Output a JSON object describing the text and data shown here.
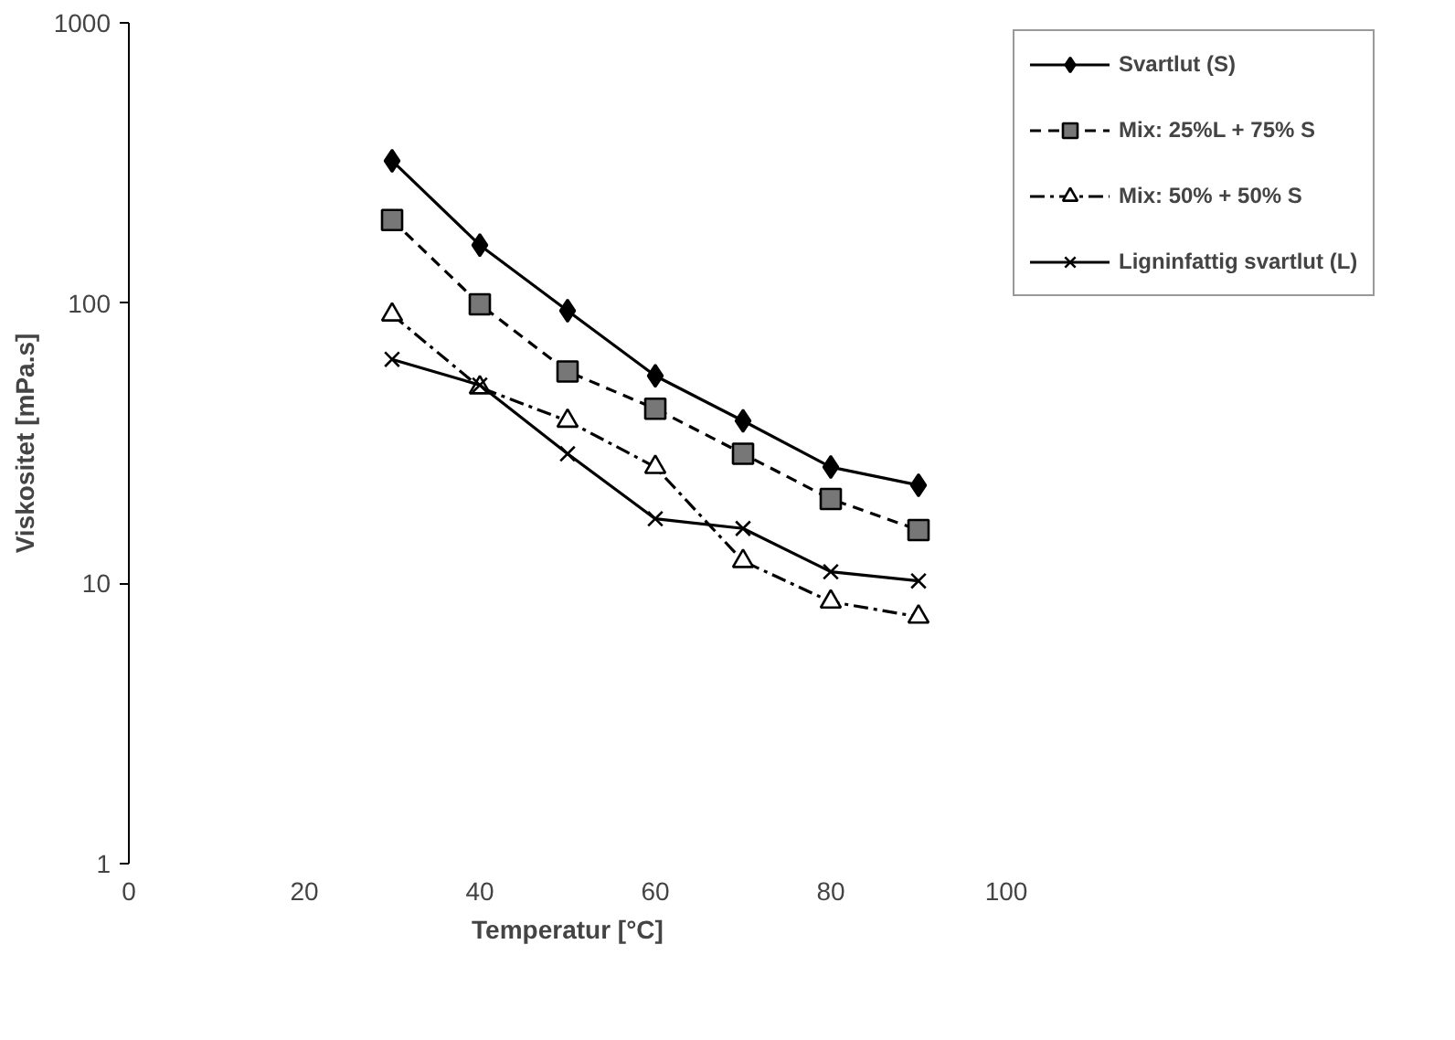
{
  "chart_data": {
    "type": "line",
    "xlabel": "Temperatur [°C]",
    "ylabel": "Viskositet [mPa.s]",
    "log": "y",
    "grid": false,
    "legend": "right",
    "x": [
      30,
      40,
      50,
      60,
      70,
      80,
      90
    ],
    "xlim": [
      0,
      100
    ],
    "xticks": [
      0,
      20,
      40,
      60,
      80,
      100
    ],
    "ylim": [
      1,
      1000
    ],
    "yticks": [
      1,
      10,
      100,
      1000
    ],
    "series": [
      {
        "name": "Svartlut (S)",
        "color": "#000000",
        "marker": "diamond",
        "line_style": "solid",
        "values": [
          322,
          161,
          94,
          55,
          38,
          26,
          22.4
        ]
      },
      {
        "name": "Mix: 25%L + 75% S",
        "color": "#000000",
        "marker": "square",
        "line_style": "dashed",
        "values": [
          198,
          99,
          57,
          42,
          29,
          20,
          15.5
        ]
      },
      {
        "name": "Mix: 50% + 50% S",
        "color": "#000000",
        "marker": "triangle",
        "line_style": "dotted",
        "values": [
          91,
          50,
          38,
          26,
          12,
          8.6,
          7.6
        ]
      },
      {
        "name": "Ligninfattig svartlut (L)",
        "color": "#000000",
        "marker": "cross",
        "line_style": "solid",
        "values": [
          63,
          51,
          29,
          17,
          15.7,
          11,
          10.2
        ]
      }
    ]
  }
}
